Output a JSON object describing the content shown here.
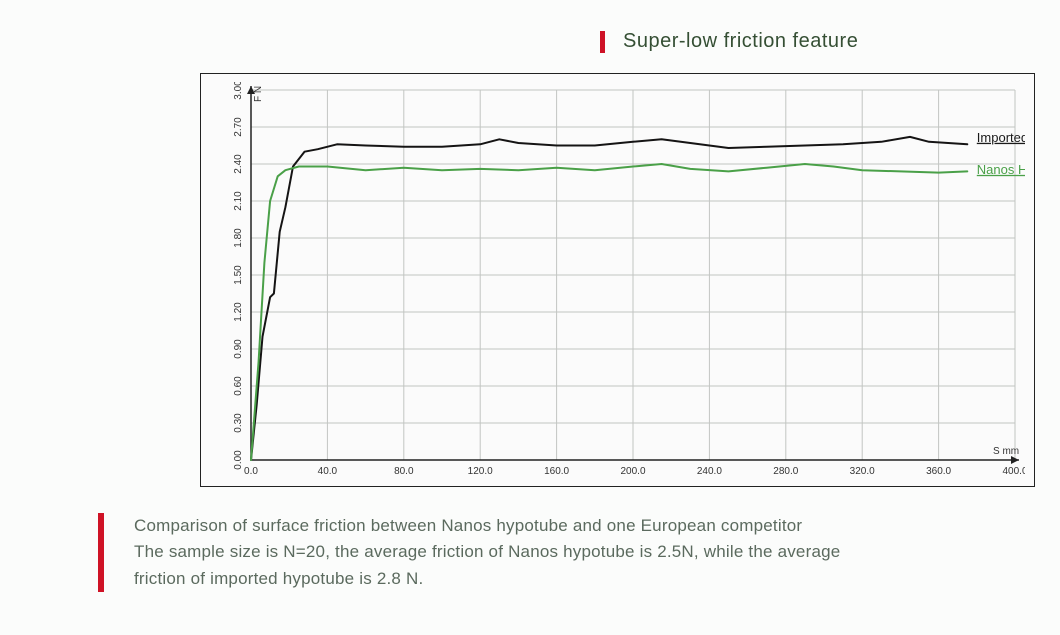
{
  "title": "Super-low friction feature",
  "chart": {
    "type": "line",
    "background_color": "#fbfbfb",
    "frame_color": "#222222",
    "grid_color": "#c2c5c2",
    "axis_color": "#222222",
    "xlabel": "S mm",
    "ylabel": "F N",
    "tick_fontsize": 10,
    "label_fontsize": 10,
    "xlim": [
      0,
      400
    ],
    "xtick_step": 40,
    "xticks_labels": [
      "0.0",
      "40.0",
      "80.0",
      "120.0",
      "160.0",
      "200.0",
      "240.0",
      "280.0",
      "320.0",
      "360.0",
      "400.0"
    ],
    "ylim": [
      0,
      3.0
    ],
    "ytick_step": 0.3,
    "yticks_labels": [
      "0.00",
      "0.30",
      "0.60",
      "0.90",
      "1.20",
      "1.50",
      "1.80",
      "2.10",
      "2.40",
      "2.70",
      "3.00"
    ],
    "series": [
      {
        "name": "Imported Hypotube",
        "color": "#151414",
        "line_width": 2,
        "label_color": "#1a1a1a",
        "points": [
          [
            0,
            0
          ],
          [
            3,
            0.45
          ],
          [
            6,
            1.0
          ],
          [
            10,
            1.32
          ],
          [
            12,
            1.35
          ],
          [
            15,
            1.85
          ],
          [
            18,
            2.05
          ],
          [
            22,
            2.38
          ],
          [
            28,
            2.5
          ],
          [
            35,
            2.52
          ],
          [
            45,
            2.56
          ],
          [
            60,
            2.55
          ],
          [
            80,
            2.54
          ],
          [
            100,
            2.54
          ],
          [
            120,
            2.56
          ],
          [
            130,
            2.6
          ],
          [
            140,
            2.57
          ],
          [
            160,
            2.55
          ],
          [
            180,
            2.55
          ],
          [
            200,
            2.58
          ],
          [
            215,
            2.6
          ],
          [
            230,
            2.57
          ],
          [
            250,
            2.53
          ],
          [
            270,
            2.54
          ],
          [
            290,
            2.55
          ],
          [
            310,
            2.56
          ],
          [
            330,
            2.58
          ],
          [
            345,
            2.62
          ],
          [
            355,
            2.58
          ],
          [
            375,
            2.56
          ]
        ]
      },
      {
        "name": "Nanos Hypotube",
        "color": "#4aa048",
        "line_width": 2,
        "label_color": "#4aa048",
        "points": [
          [
            0,
            0
          ],
          [
            4,
            0.8
          ],
          [
            7,
            1.6
          ],
          [
            10,
            2.1
          ],
          [
            14,
            2.3
          ],
          [
            18,
            2.35
          ],
          [
            25,
            2.38
          ],
          [
            40,
            2.38
          ],
          [
            60,
            2.35
          ],
          [
            80,
            2.37
          ],
          [
            100,
            2.35
          ],
          [
            120,
            2.36
          ],
          [
            140,
            2.35
          ],
          [
            160,
            2.37
          ],
          [
            180,
            2.35
          ],
          [
            200,
            2.38
          ],
          [
            215,
            2.4
          ],
          [
            230,
            2.36
          ],
          [
            250,
            2.34
          ],
          [
            270,
            2.37
          ],
          [
            290,
            2.4
          ],
          [
            305,
            2.38
          ],
          [
            320,
            2.35
          ],
          [
            340,
            2.34
          ],
          [
            360,
            2.33
          ],
          [
            375,
            2.34
          ]
        ]
      }
    ],
    "series_label_pos": [
      {
        "x": 380,
        "y": 2.58
      },
      {
        "x": 380,
        "y": 2.32
      }
    ]
  },
  "caption": {
    "line1": "Comparison of surface friction between Nanos hypotube and one European competitor",
    "line2": "The sample size is N=20, the average friction of Nanos hypotube is 2.5N, while the average",
    "line3": "friction of imported hypotube is 2.8 N."
  },
  "colors": {
    "accent_bar": "#ce1226",
    "title_text": "#354f34",
    "caption_text": "#5b6a5e"
  }
}
